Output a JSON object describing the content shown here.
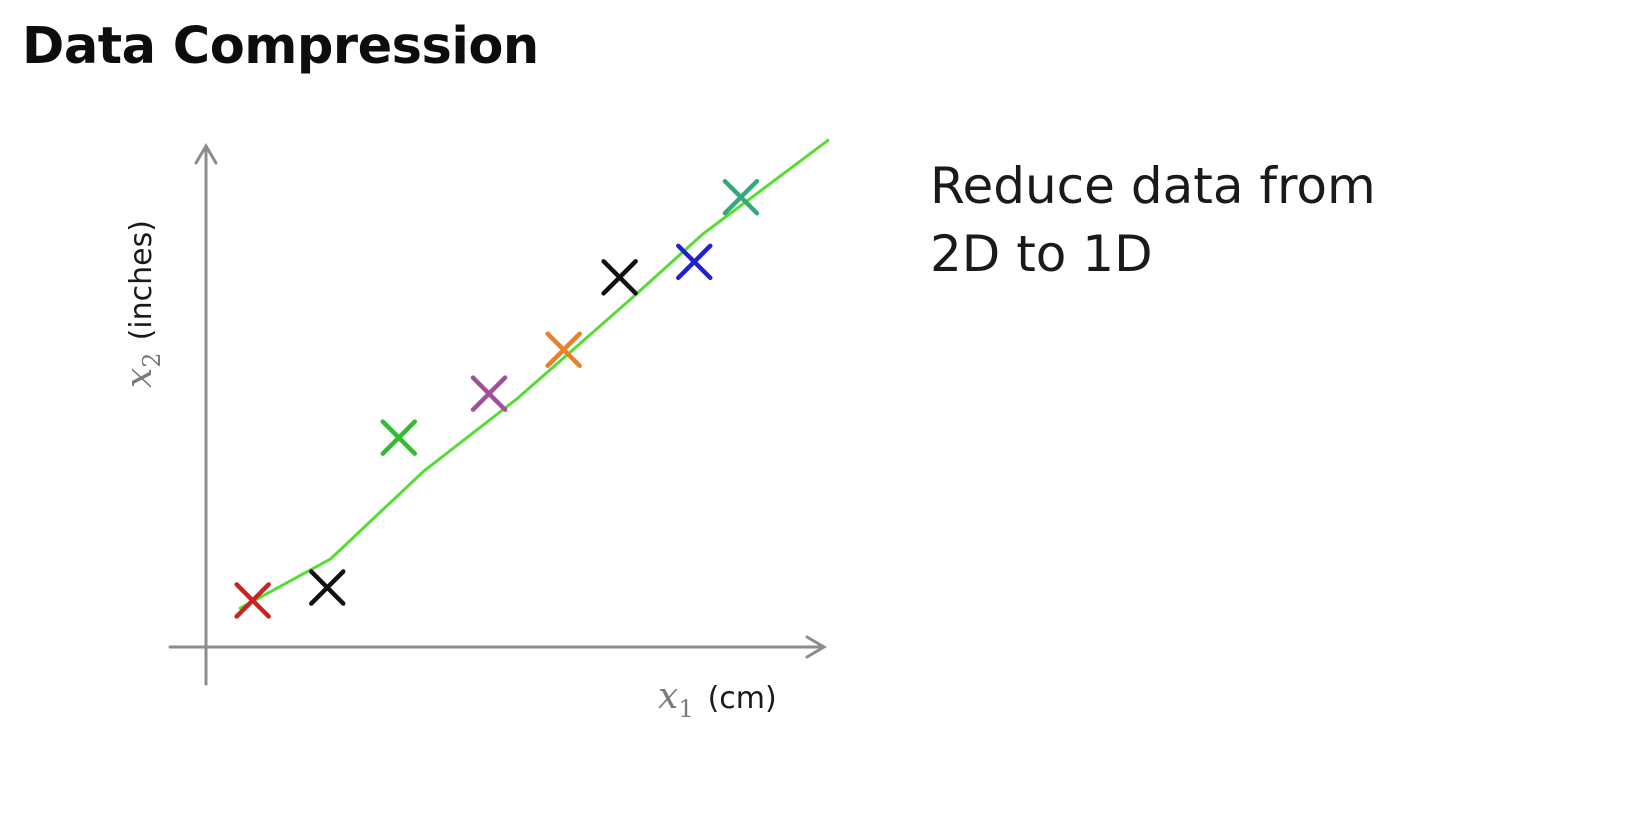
{
  "title": "Data Compression",
  "description": {
    "line1": "Reduce data from",
    "line2": "2D to 1D"
  },
  "chart_data": {
    "type": "scatter",
    "xlabel": {
      "symbol": "x",
      "subscript": "1",
      "unit": "(cm)"
    },
    "ylabel": {
      "symbol": "x",
      "subscript": "2",
      "unit": "(inches)"
    },
    "points": [
      {
        "x": 0.075,
        "y": 0.09,
        "color": "#cc2222"
      },
      {
        "x": 0.195,
        "y": 0.115,
        "color": "#111111"
      },
      {
        "x": 0.31,
        "y": 0.405,
        "color": "#33bb33"
      },
      {
        "x": 0.455,
        "y": 0.49,
        "color": "#a0509a"
      },
      {
        "x": 0.575,
        "y": 0.575,
        "color": "#e8822a"
      },
      {
        "x": 0.665,
        "y": 0.715,
        "color": "#111111"
      },
      {
        "x": 0.785,
        "y": 0.745,
        "color": "#2222cc"
      },
      {
        "x": 0.86,
        "y": 0.87,
        "color": "#33aa77"
      }
    ],
    "fit_line": {
      "color": "#55dd33",
      "points": [
        {
          "x": 0.055,
          "y": 0.075
        },
        {
          "x": 0.2,
          "y": 0.17
        },
        {
          "x": 0.35,
          "y": 0.34
        },
        {
          "x": 0.5,
          "y": 0.48
        },
        {
          "x": 0.68,
          "y": 0.67
        },
        {
          "x": 0.8,
          "y": 0.8
        },
        {
          "x": 1.0,
          "y": 0.98
        }
      ]
    }
  }
}
